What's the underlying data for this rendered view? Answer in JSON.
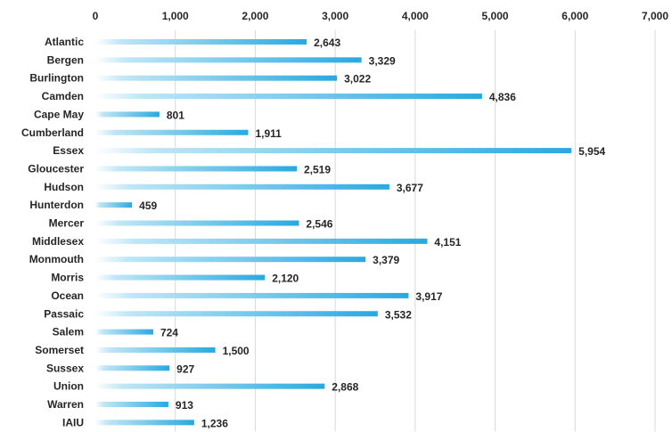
{
  "chart_data": {
    "type": "bar",
    "orientation": "horizontal",
    "title": "",
    "xlabel": "",
    "ylabel": "",
    "categories": [
      "Atlantic",
      "Bergen",
      "Burlington",
      "Camden",
      "Cape May",
      "Cumberland",
      "Essex",
      "Gloucester",
      "Hudson",
      "Hunterdon",
      "Mercer",
      "Middlesex",
      "Monmouth",
      "Morris",
      "Ocean",
      "Passaic",
      "Salem",
      "Somerset",
      "Sussex",
      "Union",
      "Warren",
      "IAIU"
    ],
    "values": [
      2643,
      3329,
      3022,
      4836,
      801,
      1911,
      5954,
      2519,
      3677,
      459,
      2546,
      4151,
      3379,
      2120,
      3917,
      3532,
      724,
      1500,
      927,
      2868,
      913,
      1236
    ],
    "value_labels": [
      "2,643",
      "3,329",
      "3,022",
      "4,836",
      "801",
      "1,911",
      "5,954",
      "2,519",
      "3,677",
      "459",
      "2,546",
      "4,151",
      "3,379",
      "2,120",
      "3,917",
      "3,532",
      "724",
      "1,500",
      "927",
      "2,868",
      "913",
      "1,236"
    ],
    "xlim": [
      0,
      7000
    ],
    "x_ticks": [
      0,
      1000,
      2000,
      3000,
      4000,
      5000,
      6000,
      7000
    ],
    "x_tick_labels": [
      "0",
      "1,000",
      "2,000",
      "3,000",
      "4,000",
      "5,000",
      "6,000",
      "7,000"
    ],
    "x_axis_position": "top",
    "grid": true,
    "legend": "none",
    "colors": {
      "bar_start": "#ffffff",
      "bar_end": "#29a9e0",
      "grid": "#d9d9d9",
      "text": "#262626"
    }
  }
}
